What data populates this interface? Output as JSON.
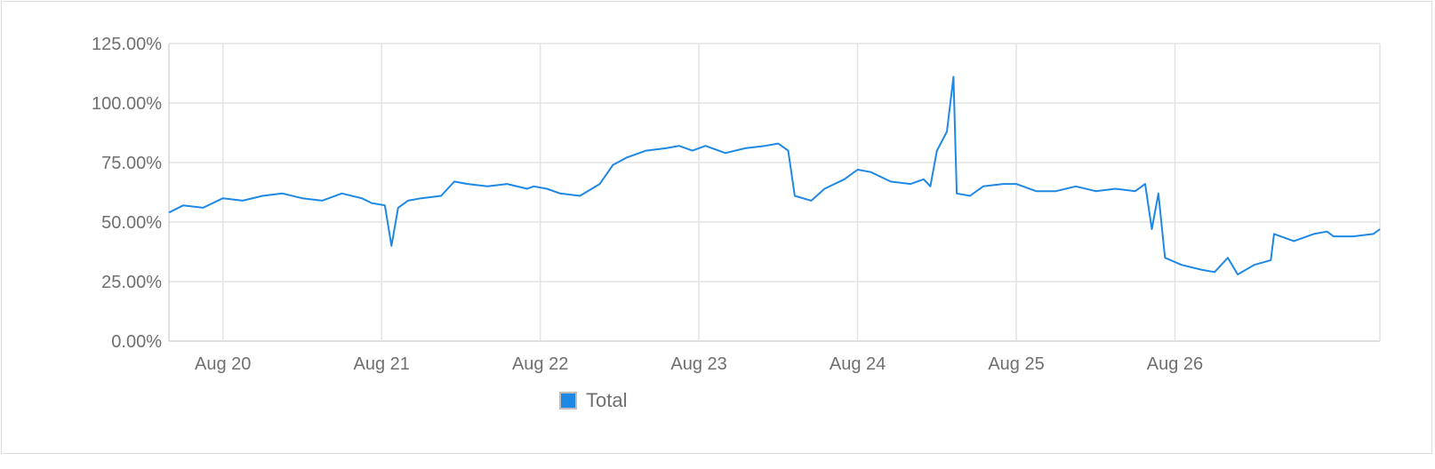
{
  "chart_data": {
    "type": "line",
    "title": "",
    "xlabel": "",
    "ylabel": "",
    "x_start": "Aug 19",
    "x_end": "Aug 26",
    "ylim": [
      0,
      125
    ],
    "y_ticks": [
      "0.00%",
      "25.00%",
      "50.00%",
      "75.00%",
      "100.00%",
      "125.00%"
    ],
    "x_ticks": [
      "Aug 20",
      "Aug 21",
      "Aug 22",
      "Aug 23",
      "Aug 24",
      "Aug 25",
      "Aug 26"
    ],
    "grid": true,
    "legend_position": "bottom",
    "series": [
      {
        "name": "Total",
        "color": "#1e88e5",
        "points": [
          [
            "Aug 19 15:50",
            54
          ],
          [
            "Aug 19 18:00",
            57
          ],
          [
            "Aug 19 21:00",
            56
          ],
          [
            "Aug 20 00:00",
            60
          ],
          [
            "Aug 20 03:00",
            59
          ],
          [
            "Aug 20 06:00",
            61
          ],
          [
            "Aug 20 09:00",
            62
          ],
          [
            "Aug 20 12:00",
            60
          ],
          [
            "Aug 20 15:00",
            59
          ],
          [
            "Aug 20 18:00",
            62
          ],
          [
            "Aug 20 21:00",
            60
          ],
          [
            "Aug 20 22:30",
            58
          ],
          [
            "Aug 21 00:30",
            57
          ],
          [
            "Aug 21 01:30",
            40
          ],
          [
            "Aug 21 02:30",
            56
          ],
          [
            "Aug 21 04:00",
            59
          ],
          [
            "Aug 21 06:00",
            60
          ],
          [
            "Aug 21 09:00",
            61
          ],
          [
            "Aug 21 11:00",
            67
          ],
          [
            "Aug 21 13:00",
            66
          ],
          [
            "Aug 21 16:00",
            65
          ],
          [
            "Aug 21 19:00",
            66
          ],
          [
            "Aug 21 22:00",
            64
          ],
          [
            "Aug 21 23:00",
            65
          ],
          [
            "Aug 22 01:00",
            64
          ],
          [
            "Aug 22 03:00",
            62
          ],
          [
            "Aug 22 06:00",
            61
          ],
          [
            "Aug 22 09:00",
            66
          ],
          [
            "Aug 22 11:00",
            74
          ],
          [
            "Aug 22 13:00",
            77
          ],
          [
            "Aug 22 16:00",
            80
          ],
          [
            "Aug 22 19:00",
            81
          ],
          [
            "Aug 22 21:00",
            82
          ],
          [
            "Aug 22 23:00",
            80
          ],
          [
            "Aug 23 01:00",
            82
          ],
          [
            "Aug 23 04:00",
            79
          ],
          [
            "Aug 23 07:00",
            81
          ],
          [
            "Aug 23 10:00",
            82
          ],
          [
            "Aug 23 12:00",
            83
          ],
          [
            "Aug 23 13:30",
            80
          ],
          [
            "Aug 23 14:30",
            61
          ],
          [
            "Aug 23 17:00",
            59
          ],
          [
            "Aug 23 19:00",
            64
          ],
          [
            "Aug 23 22:00",
            68
          ],
          [
            "Aug 24 00:00",
            72
          ],
          [
            "Aug 24 02:00",
            71
          ],
          [
            "Aug 24 05:00",
            67
          ],
          [
            "Aug 24 08:00",
            66
          ],
          [
            "Aug 24 10:00",
            68
          ],
          [
            "Aug 24 11:00",
            65
          ],
          [
            "Aug 24 12:00",
            80
          ],
          [
            "Aug 24 13:30",
            88
          ],
          [
            "Aug 24 14:30",
            111
          ],
          [
            "Aug 24 15:00",
            62
          ],
          [
            "Aug 24 17:00",
            61
          ],
          [
            "Aug 24 19:00",
            65
          ],
          [
            "Aug 24 22:00",
            66
          ],
          [
            "Aug 25 00:00",
            66
          ],
          [
            "Aug 25 03:00",
            63
          ],
          [
            "Aug 25 06:00",
            63
          ],
          [
            "Aug 25 09:00",
            65
          ],
          [
            "Aug 25 12:00",
            63
          ],
          [
            "Aug 25 15:00",
            64
          ],
          [
            "Aug 25 18:00",
            63
          ],
          [
            "Aug 25 19:30",
            66
          ],
          [
            "Aug 25 20:30",
            47
          ],
          [
            "Aug 25 21:30",
            62
          ],
          [
            "Aug 25 22:30",
            35
          ],
          [
            "Aug 26 01:00",
            32
          ],
          [
            "Aug 26 04:00",
            30
          ],
          [
            "Aug 26 06:00",
            29
          ],
          [
            "Aug 26 08:00",
            35
          ],
          [
            "Aug 26 09:30",
            28
          ],
          [
            "Aug 26 12:00",
            32
          ],
          [
            "Aug 26 14:30",
            34
          ],
          [
            "Aug 26 15:00",
            45
          ],
          [
            "Aug 26 18:00",
            42
          ],
          [
            "Aug 26 21:00",
            45
          ],
          [
            "Aug 26 23:00",
            46
          ],
          [
            "Aug 27 00:00",
            44
          ],
          [
            "Aug 27 03:00",
            44
          ],
          [
            "Aug 27 06:00",
            45
          ],
          [
            "Aug 27 07:00",
            47
          ]
        ]
      }
    ]
  }
}
